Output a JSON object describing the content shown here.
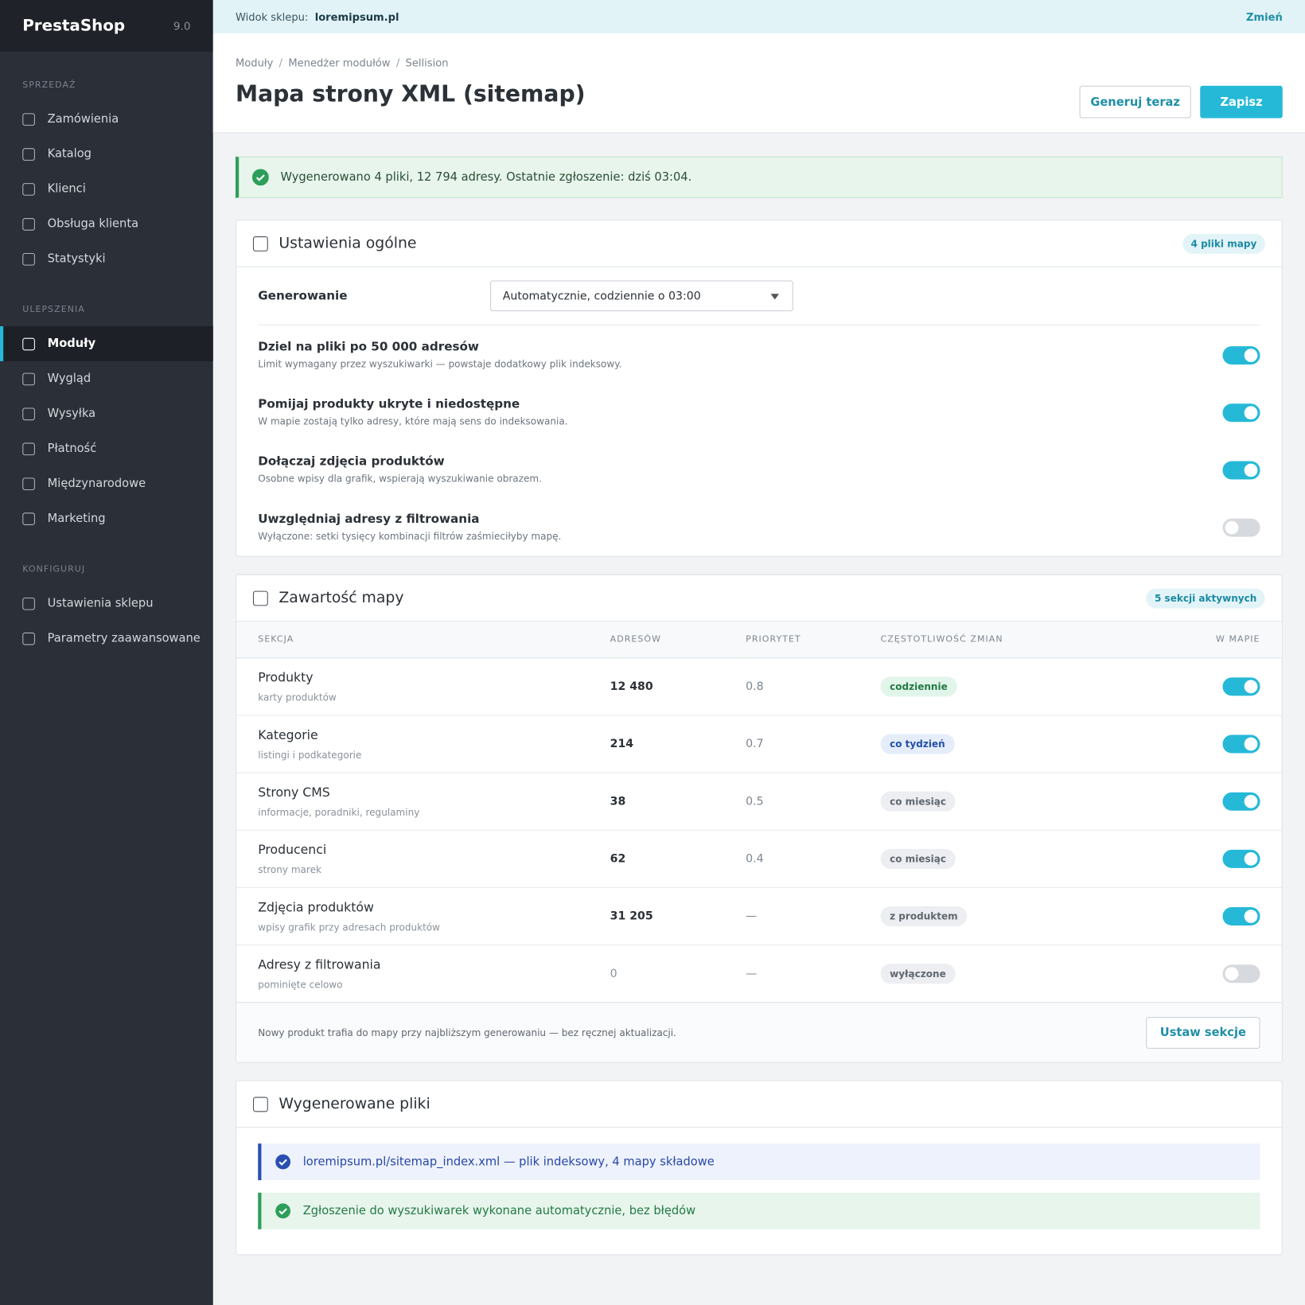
{
  "sidebar": {
    "brand": "PrestaShop",
    "version": "9.0",
    "groups": [
      {
        "title": "SPRZEDAŻ",
        "items": [
          {
            "label": "Zamówienia"
          },
          {
            "label": "Katalog"
          },
          {
            "label": "Klienci"
          },
          {
            "label": "Obsługa klienta"
          },
          {
            "label": "Statystyki"
          }
        ]
      },
      {
        "title": "ULEPSZENIA",
        "items": [
          {
            "label": "Moduły",
            "active": true
          },
          {
            "label": "Wygląd"
          },
          {
            "label": "Wysyłka"
          },
          {
            "label": "Płatność"
          },
          {
            "label": "Międzynarodowe"
          },
          {
            "label": "Marketing"
          }
        ]
      },
      {
        "title": "KONFIGURUJ",
        "items": [
          {
            "label": "Ustawienia sklepu"
          },
          {
            "label": "Parametry zaawansowane"
          }
        ]
      }
    ]
  },
  "topbar": {
    "label": "Widok sklepu:",
    "shop": "loremipsum.pl",
    "action": "Zmień"
  },
  "header": {
    "breadcrumb": [
      "Moduły",
      "Menedżer modułów",
      "Sellision"
    ],
    "title": "Mapa strony XML (sitemap)",
    "buttons": [
      "Generuj teraz",
      "Zapisz"
    ]
  },
  "alert": "Wygenerowano 4 pliki, 12 794 adresy. Ostatnie zgłoszenie: dziś 03:04.",
  "general": {
    "title": "Ustawienia ogólne",
    "badge": "4 pliki mapy",
    "generation": {
      "label": "Generowanie",
      "value": "Automatycznie, codziennie o 03:00"
    },
    "options": [
      {
        "title": "Dziel na pliki po 50 000 adresów",
        "desc": "Limit wymagany przez wyszukiwarki — powstaje dodatkowy plik indeksowy.",
        "on": true
      },
      {
        "title": "Pomijaj produkty ukryte i niedostępne",
        "desc": "W mapie zostają tylko adresy, które mają sens do indeksowania.",
        "on": true
      },
      {
        "title": "Dołączaj zdjęcia produktów",
        "desc": "Osobne wpisy dla grafik, wspierają wyszukiwanie obrazem.",
        "on": true
      },
      {
        "title": "Uwzględniaj adresy z filtrowania",
        "desc": "Wyłączone: setki tysięcy kombinacji filtrów zaśmieciłyby mapę.",
        "on": false
      }
    ]
  },
  "content": {
    "title": "Zawartość mapy",
    "badge": "5 sekcji aktywnych",
    "columns": [
      "SEKCJA",
      "ADRESÓW",
      "PRIORYTET",
      "CZĘSTOTLIWOŚĆ ZMIAN",
      "W MAPIE"
    ],
    "rows": [
      {
        "name": "Produkty",
        "desc": "karty produktów",
        "urls": "12 480",
        "priority": "0.8",
        "frequency": "codziennie",
        "tone": "green",
        "on": true
      },
      {
        "name": "Kategorie",
        "desc": "listingi i podkategorie",
        "urls": "214",
        "priority": "0.7",
        "frequency": "co tydzień",
        "tone": "blue",
        "on": true
      },
      {
        "name": "Strony CMS",
        "desc": "informacje, poradniki, regulaminy",
        "urls": "38",
        "priority": "0.5",
        "frequency": "co miesiąc",
        "tone": "gray",
        "on": true
      },
      {
        "name": "Producenci",
        "desc": "strony marek",
        "urls": "62",
        "priority": "0.4",
        "frequency": "co miesiąc",
        "tone": "gray",
        "on": true
      },
      {
        "name": "Zdjęcia produktów",
        "desc": "wpisy grafik przy adresach produktów",
        "urls": "31 205",
        "priority": "—",
        "frequency": "z produktem",
        "tone": "gray",
        "on": true
      },
      {
        "name": "Adresy z filtrowania",
        "desc": "pominięte celowo",
        "urls": "0",
        "priority": "—",
        "frequency": "wyłączone",
        "tone": "gray",
        "on": false
      }
    ],
    "footer_note": "Nowy produkt trafia do mapy przy najbliższym generowaniu — bez ręcznej aktualizacji.",
    "button": "Ustaw sekcje"
  },
  "files": {
    "title": "Wygenerowane pliki",
    "notices": [
      {
        "text": "loremipsum.pl/sitemap_index.xml — plik indeksowy, 4 mapy składowe",
        "kind": "info"
      },
      {
        "text": "Zgłoszenie do wyszukiwarek wykonane automatycznie, bez błędów",
        "kind": "success"
      }
    ]
  }
}
